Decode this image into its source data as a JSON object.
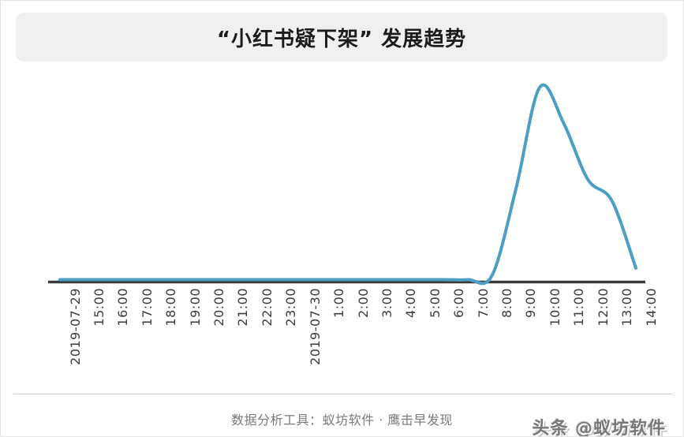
{
  "title": "“小红书疑下架” 发展趋势",
  "footer": {
    "source_label": "数据分析工具：蚁坊软件 · 鹰击早发现",
    "watermark": "头条 @蚁坊软件"
  },
  "chart_data": {
    "type": "line",
    "title": "“小红书疑下架” 发展趋势",
    "categories": [
      "2019-07-29",
      "15:00",
      "16:00",
      "17:00",
      "18:00",
      "19:00",
      "20:00",
      "21:00",
      "22:00",
      "23:00",
      "2019-07-30",
      "1:00",
      "2:00",
      "3:00",
      "4:00",
      "5:00",
      "6:00",
      "7:00",
      "8:00",
      "9:00",
      "10:00",
      "11:00",
      "12:00",
      "13:00",
      "14:00"
    ],
    "values": [
      0,
      0,
      0,
      0,
      0,
      0,
      0,
      0,
      0,
      0,
      0,
      0,
      0,
      0,
      0,
      0,
      0,
      0,
      2,
      47,
      100,
      81,
      52,
      41,
      6
    ],
    "xlabel": "",
    "ylabel": "",
    "ylim": [
      0,
      100
    ],
    "y_axis_visible": false,
    "grid": false,
    "legend": false,
    "smoothing": "spline",
    "line_color": "#4d9ec4",
    "axis_color": "#3a3a3a"
  },
  "colors": {
    "banner_bg": "#f0f0f0",
    "title_text": "#1c1c1c",
    "tick_label": "#3c3c3c",
    "footer_text": "#7a7a7a",
    "divider": "#cccccc",
    "page_border": "#e3e3e3",
    "watermark_text": "#777777"
  }
}
